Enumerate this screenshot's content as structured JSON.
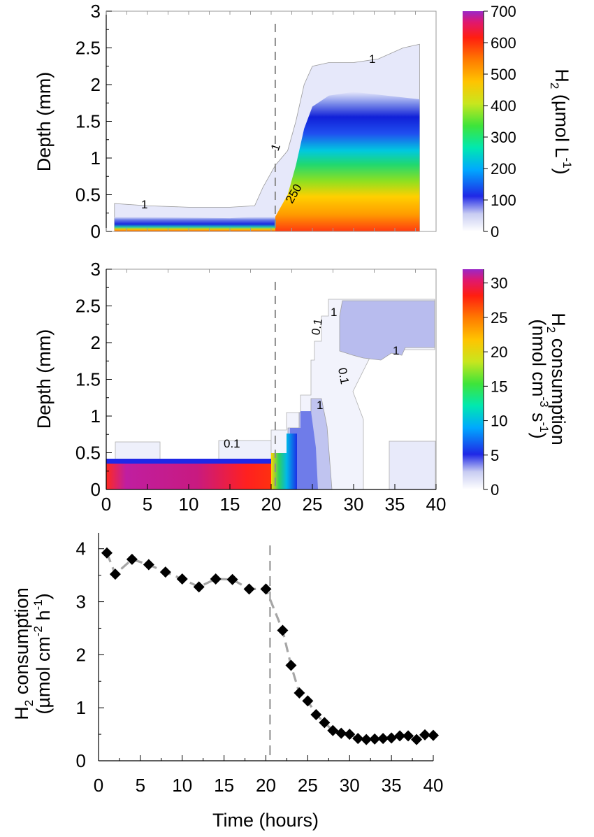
{
  "chart_data": [
    {
      "type": "heatmap",
      "panel": "top",
      "ylabel": "Depth (mm)",
      "ylim": [
        0,
        3
      ],
      "yticks": [
        "0",
        "0.5",
        "1",
        "1.5",
        "2",
        "2.5",
        "3"
      ],
      "xlim": [
        0,
        40
      ],
      "colorbar": {
        "label_main": "H",
        "label_sub": "2",
        "label_rest": " (µmol L",
        "label_sup": "-1",
        "label_close": ")",
        "range": [
          0,
          700
        ],
        "ticks": [
          "0",
          "100",
          "200",
          "300",
          "400",
          "500",
          "600",
          "700"
        ]
      },
      "contour_labels": [
        "1",
        "1",
        "1",
        "250"
      ],
      "event_time": 20.5,
      "envelope_top": [
        [
          1,
          0.38
        ],
        [
          5,
          0.35
        ],
        [
          10,
          0.33
        ],
        [
          15,
          0.33
        ],
        [
          18,
          0.35
        ],
        [
          19,
          0.6
        ],
        [
          20.5,
          0.9
        ],
        [
          22,
          1.1
        ],
        [
          23,
          1.5
        ],
        [
          24,
          2.0
        ],
        [
          25,
          2.25
        ],
        [
          27,
          2.3
        ],
        [
          30,
          2.3
        ],
        [
          33,
          2.35
        ],
        [
          36,
          2.5
        ],
        [
          38,
          2.55
        ]
      ],
      "core_top": [
        [
          1,
          0.2
        ],
        [
          15,
          0.18
        ],
        [
          18,
          0.2
        ],
        [
          20.5,
          0.2
        ],
        [
          22,
          0.5
        ],
        [
          23,
          0.9
        ],
        [
          24,
          1.4
        ],
        [
          25,
          1.7
        ],
        [
          27,
          1.85
        ],
        [
          30,
          1.9
        ],
        [
          34,
          1.85
        ],
        [
          38,
          1.8
        ]
      ],
      "x_end": 38
    },
    {
      "type": "heatmap",
      "panel": "middle",
      "ylabel": "Depth (mm)",
      "ylim": [
        0,
        3
      ],
      "yticks": [
        "0",
        "0.5",
        "1",
        "1.5",
        "2",
        "2.5",
        "3"
      ],
      "xlim": [
        0,
        40
      ],
      "xticks": [
        "0",
        "5",
        "10",
        "15",
        "20",
        "25",
        "30",
        "35",
        "40"
      ],
      "colorbar": {
        "label_line1_main": "H",
        "label_line1_sub": "2",
        "label_line1_rest": " consumption",
        "label_line2_a": "(nmol cm",
        "label_line2_sup1": "-3",
        "label_line2_b": " s",
        "label_line2_sup2": "-1",
        "label_line2_close": ")",
        "range": [
          0,
          32
        ],
        "ticks": [
          "0",
          "5",
          "10",
          "15",
          "20",
          "25",
          "30"
        ]
      },
      "contour_labels": [
        "0.1",
        "0.1",
        "1",
        "1",
        "0.1",
        "1"
      ],
      "event_time": 20.5
    },
    {
      "type": "line",
      "panel": "bottom",
      "title": "",
      "xlabel": "Time (hours)",
      "ylabel_line1_main": "H",
      "ylabel_line1_sub": "2",
      "ylabel_line1_rest": " consumption",
      "ylabel_line2_a": "(µmol cm",
      "ylabel_line2_sup1": "-2",
      "ylabel_line2_b": " h",
      "ylabel_line2_sup2": "-1",
      "ylabel_line2_close": ")",
      "xlim": [
        0,
        40
      ],
      "ylim": [
        0,
        4.3
      ],
      "xticks": [
        "0",
        "5",
        "10",
        "15",
        "20",
        "25",
        "30",
        "35",
        "40"
      ],
      "yticks": [
        "0",
        "1",
        "2",
        "3",
        "4"
      ],
      "event_time": 20.5,
      "x": [
        1,
        2,
        4,
        6,
        8,
        10,
        12,
        14,
        16,
        18,
        20,
        22,
        23,
        24,
        25,
        26,
        27,
        28,
        29,
        30,
        31,
        32,
        33,
        34,
        35,
        36,
        37,
        38,
        39,
        40
      ],
      "y": [
        3.92,
        3.52,
        3.8,
        3.7,
        3.56,
        3.43,
        3.28,
        3.43,
        3.42,
        3.24,
        3.24,
        2.46,
        1.8,
        1.28,
        1.13,
        0.87,
        0.72,
        0.57,
        0.52,
        0.5,
        0.42,
        0.4,
        0.41,
        0.42,
        0.43,
        0.47,
        0.47,
        0.4,
        0.49,
        0.48
      ]
    }
  ]
}
